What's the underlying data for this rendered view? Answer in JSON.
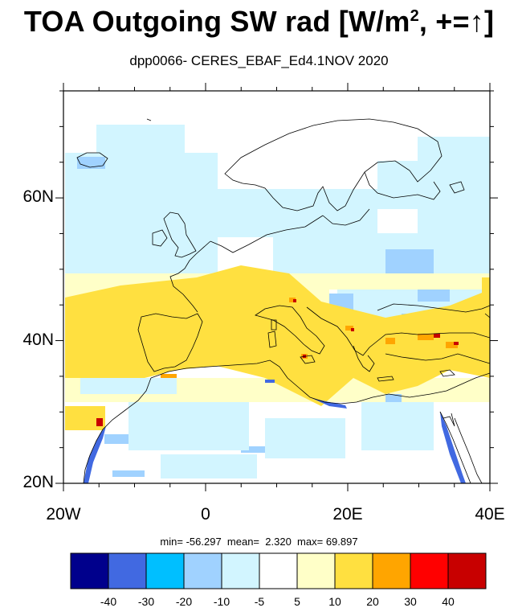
{
  "title_main": "TOA Outgoing SW rad [W/m",
  "title_sup": "2",
  "title_tail": ", +=",
  "title_arrow": "↑",
  "title_close": "]",
  "subtitle": "dpp0066- CERES_EBAF_Ed4.1NOV 2020",
  "map": {
    "lon_range": [
      -20,
      40
    ],
    "lat_range": [
      20,
      75
    ],
    "lon_ticks": [
      {
        "lon": -20,
        "label": "20W"
      },
      {
        "lon": 0,
        "label": "0"
      },
      {
        "lon": 20,
        "label": "20E"
      },
      {
        "lon": 40,
        "label": "40E"
      }
    ],
    "lat_ticks": [
      {
        "lat": 20,
        "label": "20N"
      },
      {
        "lat": 40,
        "label": "40N"
      },
      {
        "lat": 60,
        "label": "60N"
      }
    ]
  },
  "stats": {
    "min_label": "min=",
    "min": "-56.297",
    "mean_label": "mean=",
    "mean": "2.320",
    "max_label": "max=",
    "max": "69.897"
  },
  "colorbar": {
    "colors": [
      "#00008c",
      "#4169e1",
      "#00bfff",
      "#a0d2ff",
      "#d2f5ff",
      "#ffffff",
      "#ffffc8",
      "#ffe040",
      "#ffa500",
      "#ff0000",
      "#c80000"
    ],
    "labels": [
      "-40",
      "-30",
      "-20",
      "-10",
      "-5",
      "5",
      "10",
      "20",
      "30",
      "40"
    ]
  }
}
